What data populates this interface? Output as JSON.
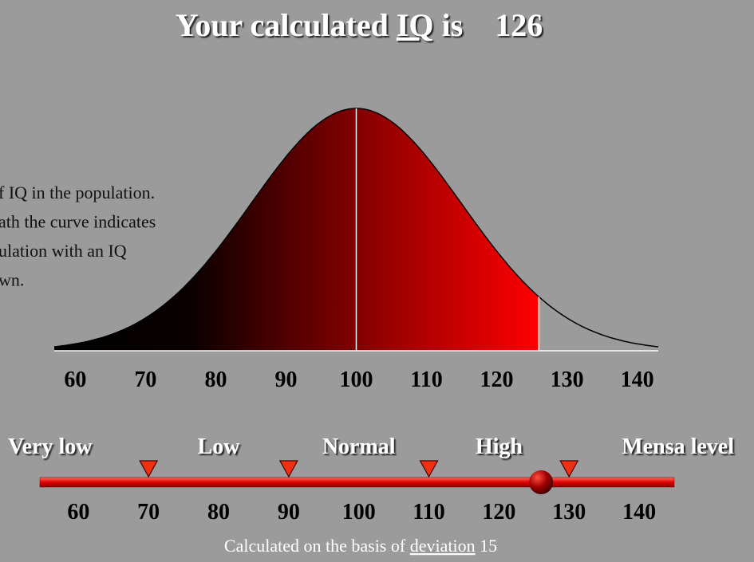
{
  "title": {
    "text": "Your calculated",
    "link": "IQ",
    "is": "is",
    "value": 126
  },
  "description": [
    "f IQ in the population.",
    "ath the curve indicates",
    "ulation with an IQ",
    "wn."
  ],
  "curve": {
    "mean": 100,
    "xlim": [
      57,
      143
    ],
    "xticks": [
      60,
      70,
      80,
      90,
      100,
      110,
      120,
      130,
      140
    ]
  },
  "scale": {
    "levels": [
      "Very low",
      "Low",
      "Normal",
      "High",
      "Mensa level"
    ],
    "thresholds": [
      70,
      90,
      110,
      130
    ],
    "xlim": [
      54.5,
      145
    ],
    "xticks": [
      60,
      70,
      80,
      90,
      100,
      110,
      120,
      130,
      140
    ]
  },
  "footer": {
    "text": "Calculated on the basis of",
    "link": "deviation",
    "value": 15
  }
}
